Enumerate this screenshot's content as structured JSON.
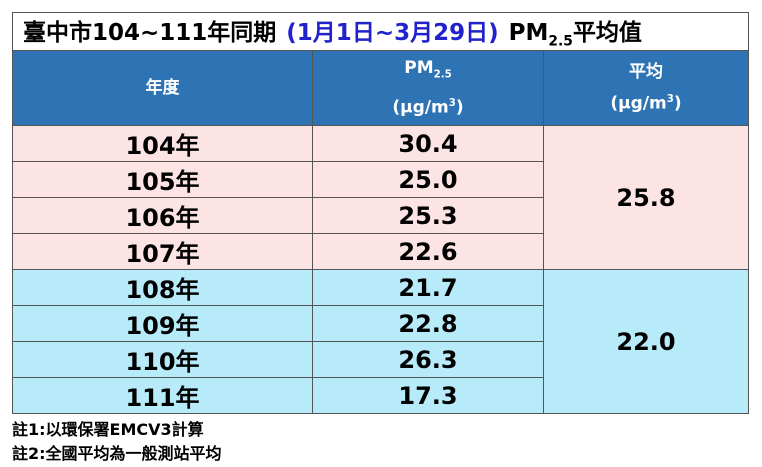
{
  "title": {
    "main": "臺中市104~111年同期",
    "period": "(1月1日~3月29日)",
    "pm": "PM",
    "pm_sub": "2.5",
    "suffix": "平均值"
  },
  "header": {
    "year": "年度",
    "pm": "PM",
    "pm_sub": "2.5",
    "unit": "(μg/m",
    "unit_sup": "3",
    "unit_close": ")",
    "avg": "平均",
    "avg_unit": "(μg/m",
    "avg_unit_sup": "3",
    "avg_unit_close": ")"
  },
  "groups": [
    {
      "rows": [
        [
          "104年",
          "30.4"
        ],
        [
          "105年",
          "25.0"
        ],
        [
          "106年",
          "25.3"
        ],
        [
          "107年",
          "22.6"
        ]
      ],
      "average": "25.8"
    },
    {
      "rows": [
        [
          "108年",
          "21.7"
        ],
        [
          "109年",
          "22.8"
        ],
        [
          "110年",
          "26.3"
        ],
        [
          "111年",
          "17.3"
        ]
      ],
      "average": "22.0"
    }
  ],
  "notes": [
    "註1:以環保署EMCV3計算",
    "註2:全國平均為一般測站平均"
  ]
}
